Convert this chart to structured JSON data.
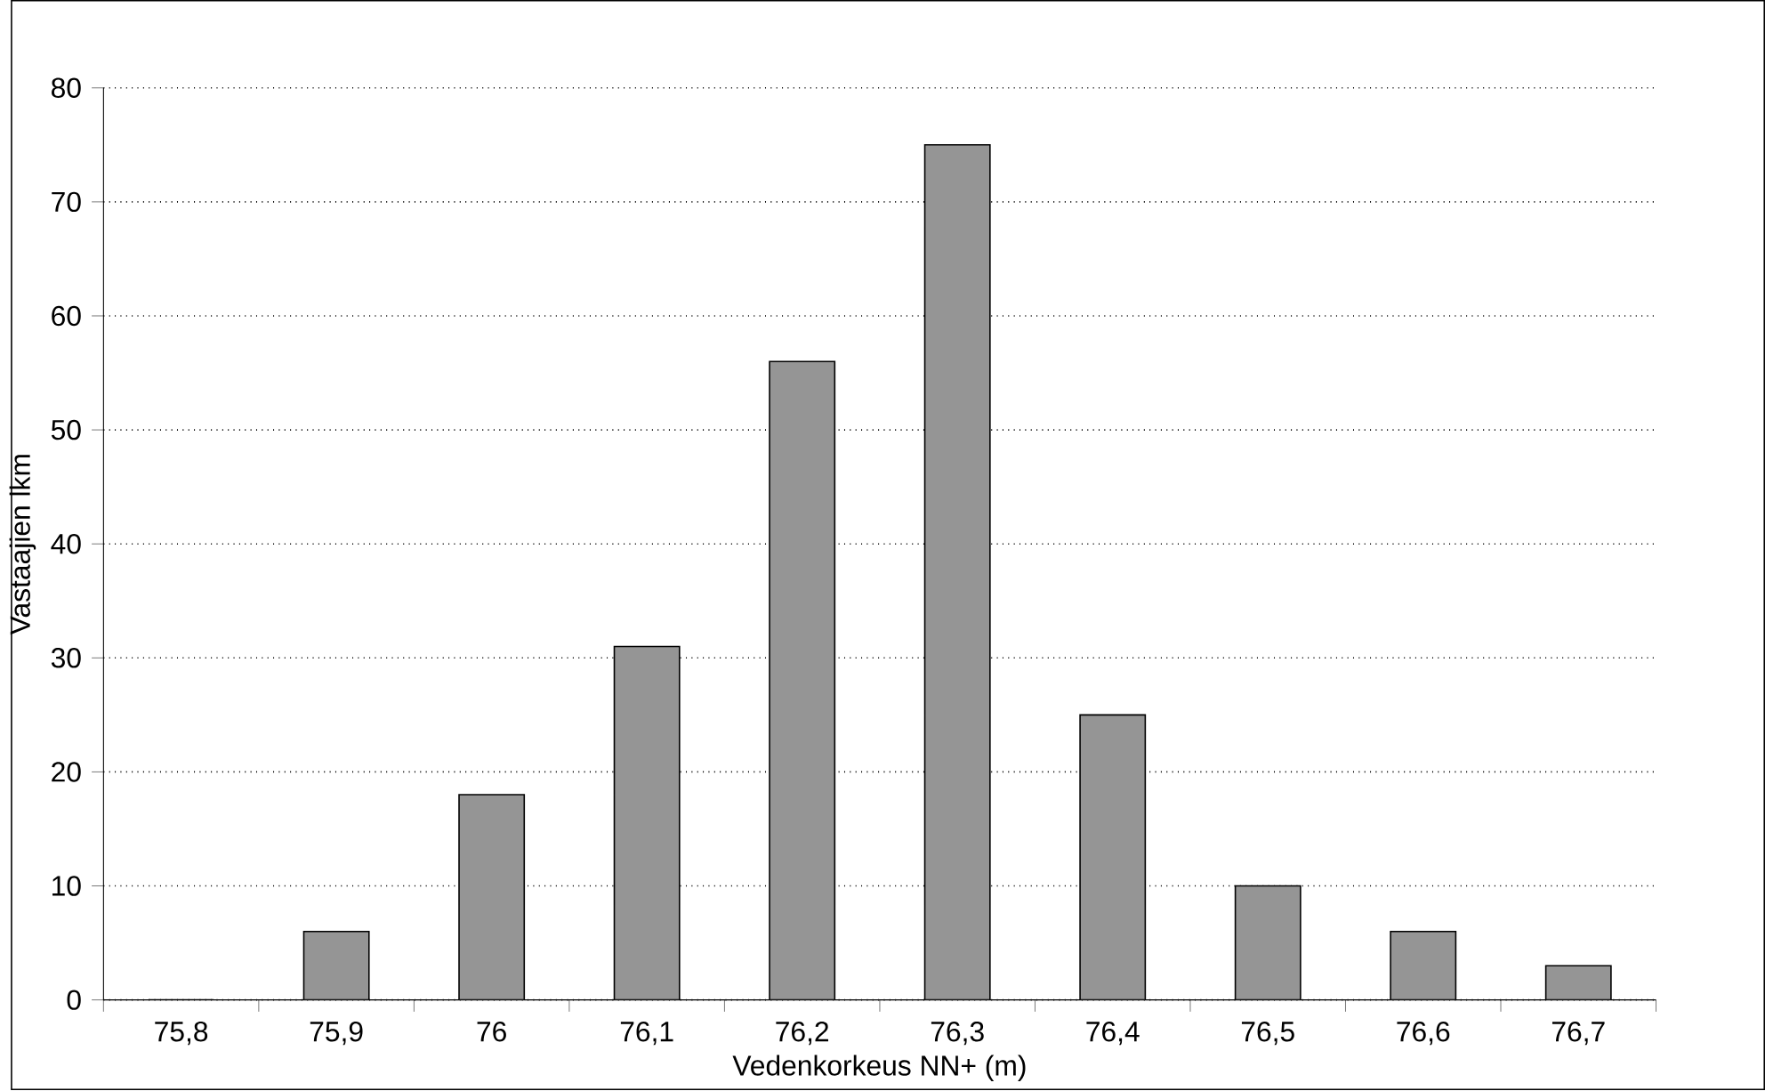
{
  "chart_data": {
    "type": "bar",
    "xlabel": "Vedenkorkeus NN+ (m)",
    "ylabel": "Vastaajien lkm",
    "categories": [
      "75,8",
      "75,9",
      "76",
      "76,1",
      "76,2",
      "76,3",
      "76,4",
      "76,5",
      "76,6",
      "76,7"
    ],
    "values": [
      0,
      6,
      18,
      31,
      56,
      75,
      25,
      10,
      6,
      3
    ],
    "color": "#959595",
    "ylim": [
      0,
      80
    ],
    "yticks": [
      0,
      10,
      20,
      30,
      40,
      50,
      60,
      70,
      80
    ],
    "grid": "y"
  }
}
